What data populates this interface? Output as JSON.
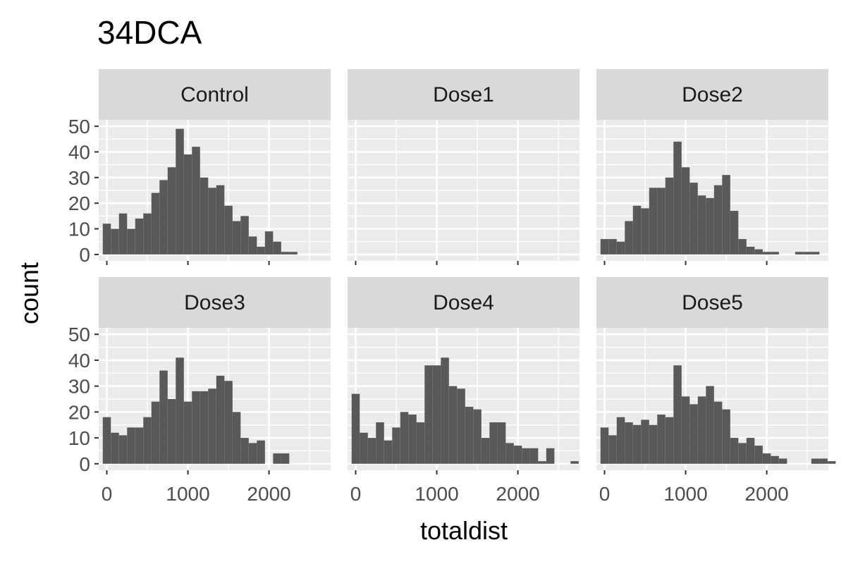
{
  "chart_data": {
    "type": "bar",
    "title": "34DCA",
    "xlabel": "totaldist",
    "ylabel": "count",
    "xlim": [
      -100,
      2760
    ],
    "ylim": [
      -2.5,
      52.5
    ],
    "xticks": [
      0,
      1000,
      2000
    ],
    "yticks": [
      0,
      10,
      20,
      30,
      40,
      50
    ],
    "x_tick_labels": [
      "0",
      "1000",
      "2000"
    ],
    "y_tick_labels": [
      "0",
      "10",
      "20",
      "30",
      "40",
      "50"
    ],
    "bin_start": -50,
    "bin_width": 100,
    "grid": true,
    "colors": {
      "bar": "#595959",
      "panel_bg": "#ebebeb",
      "strip_bg": "#d9d9d9",
      "grid": "#ffffff"
    },
    "facets": [
      {
        "label": "Control",
        "bin_start": -50,
        "counts": [
          12,
          10,
          16,
          10,
          14,
          16,
          24,
          29,
          34,
          49,
          39,
          42,
          30,
          26,
          27,
          19,
          13,
          15,
          7,
          3,
          9,
          5,
          1,
          1
        ]
      },
      {
        "label": "Dose1",
        "bin_start": -50,
        "counts": []
      },
      {
        "label": "Dose2",
        "bin_start": -50,
        "counts": [
          6,
          6,
          5,
          13,
          19,
          18,
          26,
          26,
          30,
          44,
          34,
          28,
          23,
          22,
          27,
          31,
          17,
          6,
          3,
          2,
          1,
          1,
          0,
          0,
          1,
          1,
          1
        ]
      },
      {
        "label": "Dose3",
        "bin_start": -50,
        "counts": [
          18,
          12,
          11,
          14,
          14,
          18,
          24,
          36,
          25,
          41,
          24,
          28,
          28,
          29,
          34,
          32,
          20,
          10,
          8,
          9,
          0,
          4,
          4
        ]
      },
      {
        "label": "Dose4",
        "bin_start": -50,
        "counts": [
          27,
          12,
          10,
          16,
          9,
          14,
          20,
          19,
          16,
          38,
          38,
          41,
          30,
          29,
          22,
          21,
          10,
          16,
          16,
          8,
          7,
          6,
          6,
          1,
          6,
          0,
          0,
          1
        ]
      },
      {
        "label": "Dose5",
        "bin_start": -50,
        "counts": [
          14,
          11,
          18,
          16,
          15,
          17,
          15,
          19,
          18,
          38,
          26,
          23,
          26,
          30,
          24,
          21,
          10,
          8,
          10,
          7,
          4,
          3,
          2,
          0,
          0,
          0,
          2,
          2,
          1
        ]
      }
    ]
  }
}
